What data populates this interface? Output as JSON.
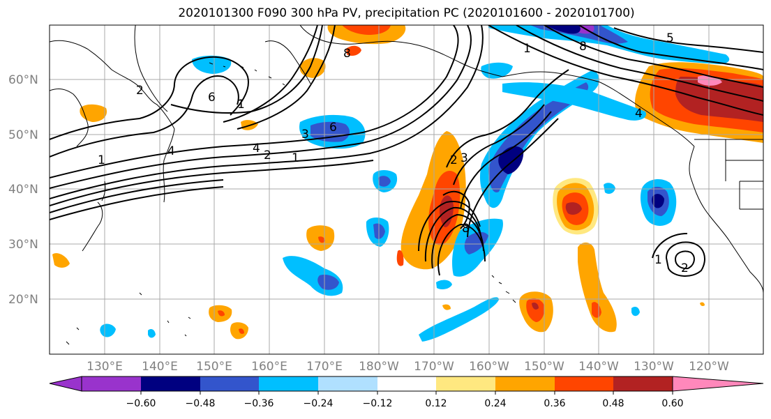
{
  "title": "2020101300 F090 300 hPa PV, precipitation PC (2020101600 - 2020101700)",
  "map": {
    "lat_labels": [
      "60°N",
      "50°N",
      "40°N",
      "30°N",
      "20°N"
    ],
    "lon_labels": [
      "130°E",
      "140°E",
      "150°E",
      "160°E",
      "170°E",
      "180°W",
      "170°W",
      "160°W",
      "150°W",
      "140°W",
      "130°W",
      "120°W"
    ],
    "contour_labels": [
      "1",
      "2",
      "4",
      "6",
      "8",
      "1",
      "2",
      "3",
      "4",
      "6",
      "1",
      "5",
      "8",
      "2",
      "1",
      "3",
      "4",
      "8",
      "1",
      "2"
    ]
  },
  "colorbar": {
    "colors": [
      "#9933cc",
      "#000080",
      "#3355cc",
      "#00bfff",
      "#b0e0ff",
      "#ffffff",
      "#ffe880",
      "#ffa500",
      "#ff4500",
      "#b22222",
      "#ff88bb"
    ],
    "tick_labels": [
      "−0.60",
      "−0.48",
      "−0.36",
      "−0.24",
      "−0.12",
      "0.12",
      "0.24",
      "0.36",
      "0.48",
      "0.60"
    ]
  }
}
